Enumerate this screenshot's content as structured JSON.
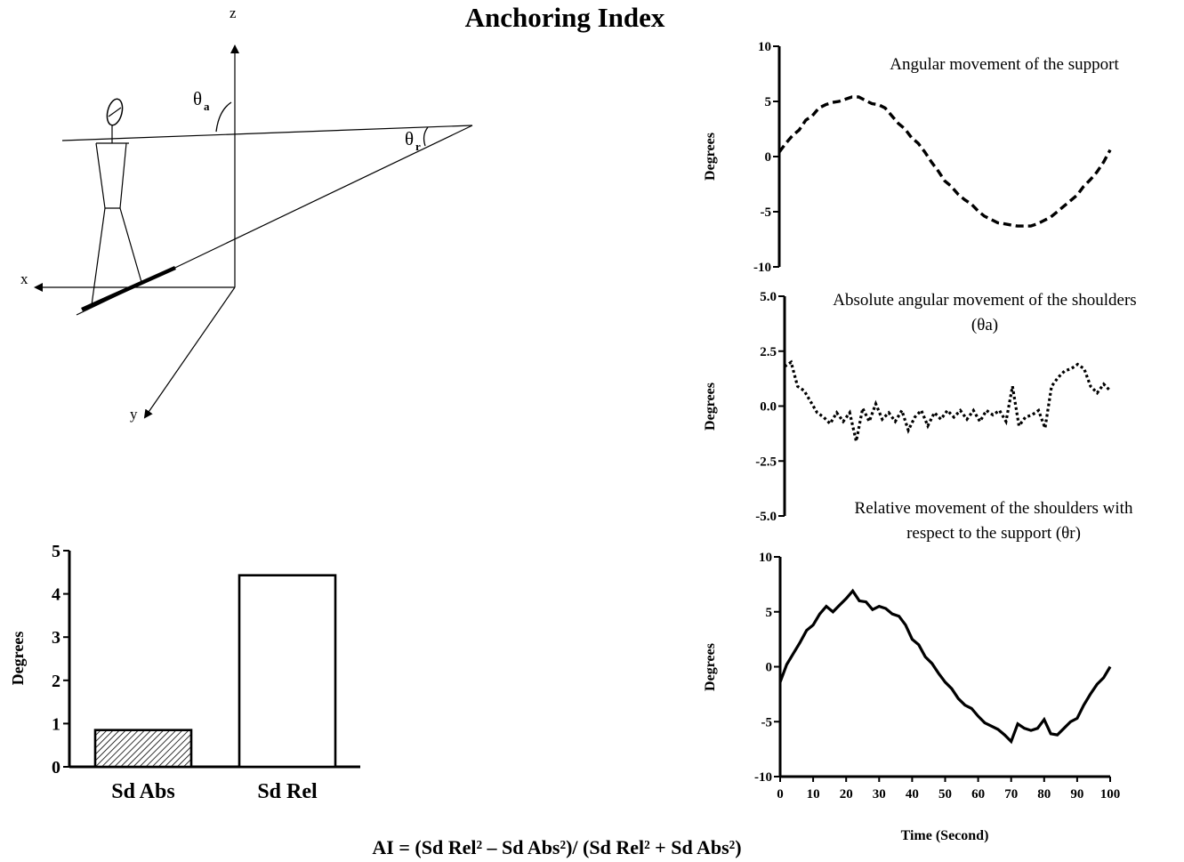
{
  "title": "Anchoring Index",
  "formula": "AI = (Sd Rel² – Sd Abs²)/ (Sd Rel² + Sd Abs²)",
  "diagram": {
    "axis_x": "x",
    "axis_y": "y",
    "axis_z": "z",
    "theta_a_sym": "θ",
    "theta_a_sub": "a",
    "theta_r_sym": "θ",
    "theta_r_sub": "r"
  },
  "chart_data": [
    {
      "id": "support",
      "type": "line",
      "title": "Angular movement of the support",
      "ylabel": "Degrees",
      "xlim": [
        0,
        100
      ],
      "ylim": [
        -10,
        10
      ],
      "yticks": [
        "10",
        "5",
        "0",
        "-5",
        "-10"
      ],
      "line_style": "dashed",
      "series": [
        {
          "x": [
            0,
            2,
            4,
            6,
            8,
            10,
            12,
            14,
            16,
            18,
            20,
            22,
            24,
            26,
            28,
            30,
            32,
            34,
            36,
            38,
            40,
            42,
            44,
            46,
            48,
            50,
            52,
            54,
            56,
            58,
            60,
            62,
            64,
            66,
            68,
            70,
            72,
            74,
            76,
            78,
            80,
            82,
            84,
            86,
            88,
            90,
            92,
            94,
            96,
            98,
            100
          ],
          "y": [
            0.4,
            1.2,
            1.9,
            2.4,
            3.3,
            3.7,
            4.4,
            4.7,
            4.9,
            5.0,
            5.2,
            5.4,
            5.4,
            5.1,
            4.8,
            4.7,
            4.4,
            3.7,
            3.0,
            2.5,
            1.7,
            1.2,
            0.4,
            -0.5,
            -1.3,
            -2.2,
            -2.7,
            -3.4,
            -3.9,
            -4.3,
            -4.9,
            -5.4,
            -5.7,
            -6.0,
            -6.1,
            -6.2,
            -6.3,
            -6.3,
            -6.3,
            -6.1,
            -5.8,
            -5.5,
            -5.0,
            -4.5,
            -4.0,
            -3.5,
            -2.7,
            -2.1,
            -1.4,
            -0.5,
            0.6
          ]
        }
      ]
    },
    {
      "id": "absolute",
      "type": "line",
      "title": "Absolute angular movement of the shoulders",
      "subtitle": "(θa)",
      "ylabel": "Degrees",
      "xlim": [
        0,
        100
      ],
      "ylim": [
        -5,
        5
      ],
      "yticks": [
        "5.0",
        "2.5",
        "0.0",
        "-2.5",
        "-5.0"
      ],
      "line_style": "dotted",
      "series": [
        {
          "x": [
            0,
            2,
            4,
            6,
            8,
            10,
            12,
            14,
            16,
            18,
            20,
            22,
            24,
            26,
            28,
            30,
            32,
            34,
            36,
            38,
            40,
            42,
            44,
            46,
            48,
            50,
            52,
            54,
            56,
            58,
            60,
            62,
            64,
            66,
            68,
            70,
            72,
            74,
            76,
            78,
            80,
            82,
            84,
            86,
            88,
            90,
            92,
            94,
            96,
            98,
            100
          ],
          "y": [
            1.8,
            2.0,
            0.9,
            0.7,
            0.2,
            -0.3,
            -0.5,
            -0.8,
            -0.3,
            -0.7,
            -0.3,
            -1.6,
            -0.1,
            -0.7,
            0.1,
            -0.6,
            -0.3,
            -0.7,
            -0.2,
            -1.1,
            -0.5,
            -0.2,
            -0.9,
            -0.3,
            -0.6,
            -0.2,
            -0.5,
            -0.2,
            -0.6,
            -0.2,
            -0.7,
            -0.2,
            -0.4,
            -0.2,
            -0.7,
            0.9,
            -0.9,
            -0.5,
            -0.4,
            -0.2,
            -1.0,
            0.9,
            1.3,
            1.6,
            1.7,
            1.9,
            1.7,
            0.9,
            0.6,
            1.0,
            0.7
          ]
        }
      ]
    },
    {
      "id": "relative",
      "type": "line",
      "title": "Relative movement of  the shoulders with",
      "subtitle": "respect to the support (θr)",
      "ylabel": "Degrees",
      "xlabel": "Time (Second)",
      "xlim": [
        0,
        100
      ],
      "ylim": [
        -10,
        10
      ],
      "yticks": [
        "10",
        "5",
        "0",
        "-5",
        "-10"
      ],
      "xticks": [
        "0",
        "10",
        "20",
        "30",
        "40",
        "50",
        "60",
        "70",
        "80",
        "90",
        "100"
      ],
      "line_style": "solid",
      "series": [
        {
          "x": [
            0,
            2,
            4,
            6,
            8,
            10,
            12,
            14,
            16,
            18,
            20,
            22,
            24,
            26,
            28,
            30,
            32,
            34,
            36,
            38,
            40,
            42,
            44,
            46,
            48,
            50,
            52,
            54,
            56,
            58,
            60,
            62,
            64,
            66,
            68,
            70,
            72,
            74,
            76,
            78,
            80,
            82,
            84,
            86,
            88,
            90,
            92,
            94,
            96,
            98,
            100
          ],
          "y": [
            -1.4,
            0.2,
            1.2,
            2.2,
            3.3,
            3.8,
            4.8,
            5.5,
            5.0,
            5.6,
            6.2,
            6.9,
            6.0,
            5.9,
            5.2,
            5.5,
            5.3,
            4.8,
            4.6,
            3.8,
            2.5,
            2.0,
            0.9,
            0.3,
            -0.6,
            -1.4,
            -2.0,
            -2.9,
            -3.5,
            -3.8,
            -4.5,
            -5.1,
            -5.4,
            -5.7,
            -6.2,
            -6.8,
            -5.2,
            -5.6,
            -5.8,
            -5.6,
            -4.8,
            -6.1,
            -6.2,
            -5.6,
            -5.0,
            -4.7,
            -3.5,
            -2.5,
            -1.6,
            -1.0,
            0.0
          ]
        }
      ]
    },
    {
      "id": "bars",
      "type": "bar",
      "ylabel": "Degrees",
      "ylim": [
        0,
        5
      ],
      "yticks": [
        "0",
        "1",
        "2",
        "3",
        "4",
        "5"
      ],
      "categories": [
        "Sd Abs",
        "Sd Rel"
      ],
      "values": [
        0.85,
        4.43
      ]
    }
  ]
}
